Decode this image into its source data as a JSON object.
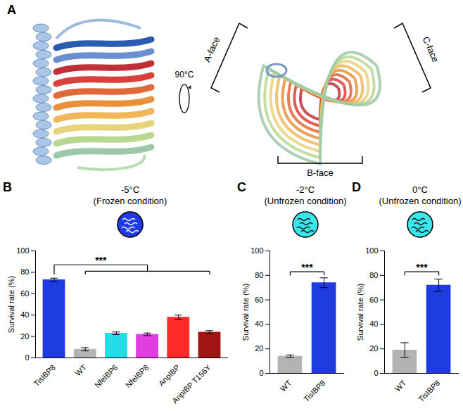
{
  "panel_a": {
    "label": "A",
    "rotation_label": "90°C",
    "faces": [
      "A-face",
      "B-face",
      "C-face"
    ]
  },
  "chart_data": [
    {
      "type": "bar",
      "panel": "B",
      "title": "-5°C",
      "subtitle": "(Frozen condition)",
      "categories": [
        "TisIBP8",
        "WT",
        "NfeIBP6",
        "NfeIBP8",
        "AnpIBP",
        "AnpIBP T156Y"
      ],
      "values": [
        73,
        8,
        23,
        22,
        38,
        24
      ],
      "errors": [
        1.5,
        1.5,
        1.2,
        1.2,
        2,
        1.5
      ],
      "colors": [
        "#1f3ce0",
        "#b3b3b3",
        "#22dde6",
        "#e03ee0",
        "#ff2a2a",
        "#a01414"
      ],
      "y_label": "Survival rate (%)",
      "ylim": [
        0,
        100
      ],
      "yticks": [
        0,
        20,
        40,
        60,
        80,
        100
      ],
      "significance": {
        "label": "***",
        "from": "TisIBP8",
        "to": [
          "WT",
          "NfeIBP6",
          "NfeIBP8",
          "AnpIBP",
          "AnpIBP T156Y"
        ],
        "y": 87,
        "group_y": 81
      }
    },
    {
      "type": "bar",
      "panel": "C",
      "title": "-2°C",
      "subtitle": "(Unfrozen condition)",
      "categories": [
        "WT",
        "TisIBP8"
      ],
      "values": [
        14,
        74
      ],
      "errors": [
        1,
        4
      ],
      "colors": [
        "#b3b3b3",
        "#1f3ce0"
      ],
      "y_label": "Survival rate (%)",
      "ylim": [
        0,
        100
      ],
      "yticks": [
        0,
        20,
        40,
        60,
        80,
        100
      ],
      "significance": {
        "label": "***",
        "from": "WT",
        "to": [
          "TisIBP8"
        ],
        "y": 83
      }
    },
    {
      "type": "bar",
      "panel": "D",
      "title": "0°C",
      "subtitle": "(Unfrozen condition)",
      "categories": [
        "WT",
        "TisIBP8"
      ],
      "values": [
        19,
        72
      ],
      "errors": [
        6,
        5
      ],
      "colors": [
        "#b3b3b3",
        "#1f3ce0"
      ],
      "y_label": "Survival rate (%)",
      "ylim": [
        0,
        100
      ],
      "yticks": [
        0,
        20,
        40,
        60,
        80,
        100
      ],
      "significance": {
        "label": "***",
        "from": "WT",
        "to": [
          "TisIBP8"
        ],
        "y": 83
      }
    }
  ]
}
